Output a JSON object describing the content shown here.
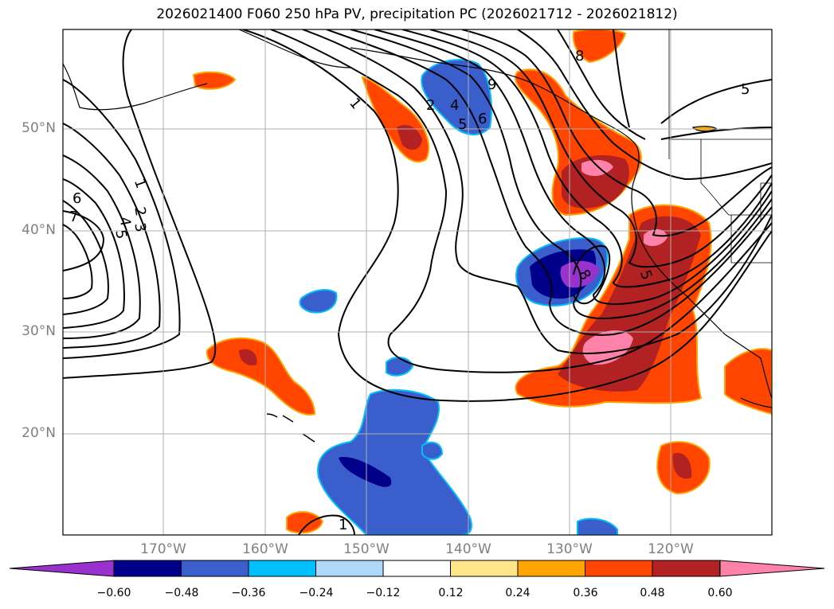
{
  "title": "2026021400 F060 250 hPa PV, precipitation PC (2026021712 - 2026021812)",
  "lat_labels": [
    "50°N",
    "40°N",
    "30°N",
    "20°N"
  ],
  "lon_labels": [
    "170°W",
    "160°W",
    "150°W",
    "140°W",
    "130°W",
    "120°W"
  ],
  "colorbar": {
    "ticks": [
      "−0.60",
      "−0.48",
      "−0.36",
      "−0.24",
      "−0.12",
      "0.12",
      "0.24",
      "0.36",
      "0.48",
      "0.60"
    ],
    "colors": [
      "#9932cc",
      "#00008b",
      "#3a5fcd",
      "#00bfff",
      "#add8f7",
      "#ffffff",
      "#ffe68a",
      "#ffa500",
      "#ff4500",
      "#b22222",
      "#ff82ab"
    ]
  },
  "contour_labels": [
    "1",
    "2",
    "3",
    "4",
    "5",
    "6",
    "7",
    "8",
    "9"
  ]
}
